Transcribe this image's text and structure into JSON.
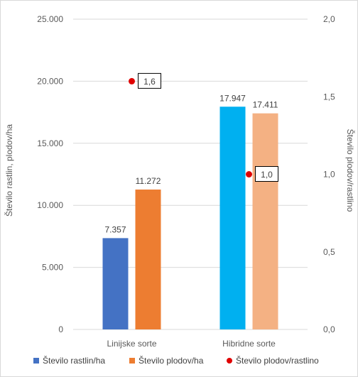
{
  "chart_data": {
    "type": "bar",
    "categories": [
      "Linijske sorte",
      "Hibridne sorte"
    ],
    "series": [
      {
        "name": "Število rastlin/ha",
        "axis": "left",
        "values": [
          7357,
          17947
        ],
        "labels": [
          "7.357",
          "17.947"
        ],
        "colors": [
          "#4472c4",
          "#00b0f0"
        ]
      },
      {
        "name": "Število plodov/ha",
        "axis": "left",
        "values": [
          11272,
          17411
        ],
        "labels": [
          "11.272",
          "17.411"
        ],
        "colors": [
          "#ed7d31",
          "#f4b183"
        ]
      },
      {
        "name": "Število plodov/rastlino",
        "axis": "right",
        "type": "scatter",
        "values": [
          1.6,
          1.0
        ],
        "labels": [
          "1,6",
          "1,0"
        ],
        "colors": [
          "#e00000",
          "#e00000"
        ]
      }
    ],
    "ylabel": "Število rastlin, plodov/ha",
    "y2label": "Število plodov/rastlino",
    "ylim": [
      0,
      25000
    ],
    "y2lim": [
      0,
      2.0
    ],
    "yticks": [
      0,
      5000,
      10000,
      15000,
      20000,
      25000
    ],
    "yticklabels": [
      "0",
      "5.000",
      "10.000",
      "15.000",
      "20.000",
      "25.000"
    ],
    "y2ticks": [
      0,
      0.5,
      1.0,
      1.5,
      2.0
    ],
    "y2ticklabels": [
      "0,0",
      "0,5",
      "1,0",
      "1,5",
      "2,0"
    ],
    "grid": true,
    "legend_position": "bottom",
    "legend": [
      {
        "label": "Število rastlin/ha",
        "marker": "square",
        "color": "#4472c4"
      },
      {
        "label": "Število plodov/ha",
        "marker": "square",
        "color": "#ed7d31"
      },
      {
        "label": "Število plodov/rastlino",
        "marker": "circle",
        "color": "#e00000"
      }
    ]
  }
}
